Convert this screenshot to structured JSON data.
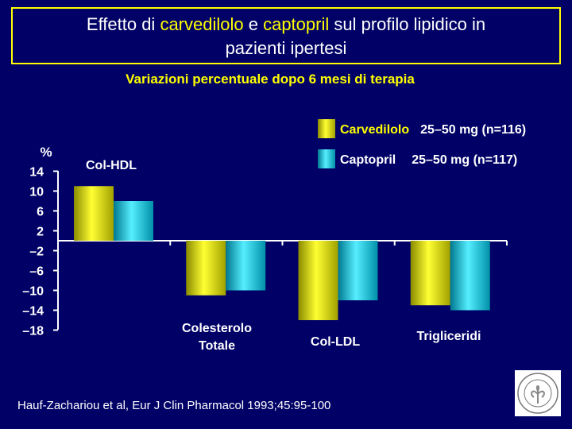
{
  "title": {
    "part1": "Effetto di ",
    "drug1": "carvedilolo",
    "part2": " e ",
    "drug2": "captopril",
    "part3": " sul profilo lipidico in",
    "line2": "pazienti ipertesi"
  },
  "subtitle": "Variazioni percentuale  dopo  6 mesi di terapia",
  "citation": "Hauf-Zachariou et al, Eur J Clin Pharmacol 1993;45:95-100",
  "colors": {
    "background": "#000066",
    "carvedilolo": "#cccc00",
    "captopril": "#00b8d8",
    "title_border": "#ffff00",
    "highlight": "#ffff00"
  },
  "chart_data": {
    "type": "bar",
    "ylabel": "%",
    "ylim": [
      -18,
      14
    ],
    "yticks": [
      14,
      10,
      6,
      2,
      -2,
      -6,
      -10,
      -14,
      -18
    ],
    "ytick_labels": [
      "14",
      "10",
      "6",
      "2",
      "–2",
      "–6",
      "–10",
      "–14",
      "–18"
    ],
    "categories": [
      "Col-HDL",
      "Colesterolo Totale",
      "Col-LDL",
      "Trigliceridi"
    ],
    "category_lines": [
      [
        "Col-HDL"
      ],
      [
        "Colesterolo",
        "Totale"
      ],
      [
        "Col-LDL"
      ],
      [
        "Trigliceridi"
      ]
    ],
    "series": [
      {
        "name": "Carvedilolo",
        "detail": "25–50 mg  (n=116)",
        "values": [
          11,
          -11,
          -16,
          -13
        ]
      },
      {
        "name": "Captopril",
        "detail": "25–50 mg  (n=117)",
        "values": [
          8,
          -10,
          -12,
          -14
        ]
      }
    ],
    "legend": "top-right"
  }
}
